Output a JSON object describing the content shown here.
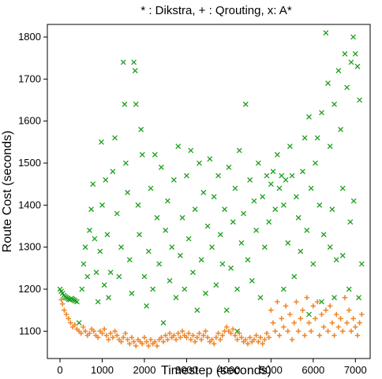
{
  "chart_data": {
    "type": "scatter",
    "title": "* : Dikstra, + : Qrouting, x: A*",
    "xlabel": "Timestep (seconds)",
    "ylabel": "Route Cost (seconds)",
    "xlim": [
      -300,
      7350
    ],
    "ylim": [
      1035,
      1830
    ],
    "xticks": [
      0,
      1000,
      2000,
      3000,
      4000,
      5000,
      6000,
      7000
    ],
    "yticks": [
      1100,
      1200,
      1300,
      1400,
      1500,
      1600,
      1700,
      1800
    ],
    "grid": false,
    "series": [
      {
        "marker": "x",
        "color": "#1a9e1a",
        "points": [
          [
            0,
            1200
          ],
          [
            30,
            1195
          ],
          [
            60,
            1190
          ],
          [
            90,
            1185
          ],
          [
            120,
            1182
          ],
          [
            150,
            1180
          ],
          [
            180,
            1178
          ],
          [
            210,
            1176
          ],
          [
            240,
            1175
          ],
          [
            270,
            1178
          ],
          [
            300,
            1176
          ],
          [
            330,
            1174
          ],
          [
            360,
            1172
          ],
          [
            400,
            1170
          ],
          [
            450,
            1120
          ],
          [
            520,
            1200
          ],
          [
            560,
            1260
          ],
          [
            600,
            1300
          ],
          [
            650,
            1230
          ],
          [
            700,
            1340
          ],
          [
            740,
            1390
          ],
          [
            780,
            1450
          ],
          [
            820,
            1320
          ],
          [
            860,
            1240
          ],
          [
            900,
            1170
          ],
          [
            950,
            1290
          ],
          [
            980,
            1550
          ],
          [
            1000,
            1400
          ],
          [
            1050,
            1210
          ],
          [
            1080,
            1460
          ],
          [
            1120,
            1330
          ],
          [
            1150,
            1180
          ],
          [
            1200,
            1240
          ],
          [
            1250,
            1480
          ],
          [
            1300,
            1560
          ],
          [
            1350,
            1380
          ],
          [
            1400,
            1230
          ],
          [
            1450,
            1300
          ],
          [
            1500,
            1740
          ],
          [
            1530,
            1640
          ],
          [
            1560,
            1500
          ],
          [
            1600,
            1430
          ],
          [
            1650,
            1270
          ],
          [
            1700,
            1190
          ],
          [
            1750,
            1740
          ],
          [
            1780,
            1720
          ],
          [
            1800,
            1640
          ],
          [
            1850,
            1400
          ],
          [
            1880,
            1330
          ],
          [
            1920,
            1580
          ],
          [
            1950,
            1520
          ],
          [
            2000,
            1230
          ],
          [
            2050,
            1160
          ],
          [
            2100,
            1290
          ],
          [
            2150,
            1440
          ],
          [
            2200,
            1200
          ],
          [
            2250,
            1520
          ],
          [
            2300,
            1370
          ],
          [
            2350,
            1260
          ],
          [
            2400,
            1490
          ],
          [
            2450,
            1120
          ],
          [
            2500,
            1340
          ],
          [
            2550,
            1410
          ],
          [
            2600,
            1220
          ],
          [
            2650,
            1300
          ],
          [
            2700,
            1460
          ],
          [
            2750,
            1180
          ],
          [
            2800,
            1540
          ],
          [
            2850,
            1280
          ],
          [
            2900,
            1370
          ],
          [
            2950,
            1200
          ],
          [
            3000,
            1470
          ],
          [
            3050,
            1320
          ],
          [
            3100,
            1530
          ],
          [
            3150,
            1240
          ],
          [
            3200,
            1390
          ],
          [
            3250,
            1150
          ],
          [
            3300,
            1500
          ],
          [
            3350,
            1270
          ],
          [
            3400,
            1430
          ],
          [
            3450,
            1190
          ],
          [
            3500,
            1350
          ],
          [
            3550,
            1510
          ],
          [
            3600,
            1300
          ],
          [
            3650,
            1420
          ],
          [
            3700,
            1210
          ],
          [
            3750,
            1470
          ],
          [
            3800,
            1330
          ],
          [
            3850,
            1260
          ],
          [
            3900,
            1390
          ],
          [
            3950,
            1150
          ],
          [
            4000,
            1490
          ],
          [
            4050,
            1250
          ],
          [
            4100,
            1360
          ],
          [
            4150,
            1440
          ],
          [
            4200,
            1200
          ],
          [
            4250,
            1530
          ],
          [
            4300,
            1310
          ],
          [
            4350,
            1380
          ],
          [
            4400,
            1640
          ],
          [
            4450,
            1270
          ],
          [
            4500,
            1460
          ],
          [
            4550,
            1220
          ],
          [
            4600,
            1410
          ],
          [
            4650,
            1340
          ],
          [
            4700,
            1500
          ],
          [
            4750,
            1180
          ],
          [
            4800,
            1420
          ],
          [
            4850,
            1300
          ],
          [
            4900,
            1470
          ],
          [
            4950,
            1360
          ],
          [
            5000,
            1450
          ],
          [
            5050,
            1480
          ],
          [
            5100,
            1390
          ],
          [
            5150,
            1520
          ],
          [
            5200,
            1440
          ],
          [
            5250,
            1470
          ],
          [
            5300,
            1400
          ],
          [
            5350,
            1460
          ],
          [
            5400,
            1310
          ],
          [
            5450,
            1540
          ],
          [
            5500,
            1470
          ],
          [
            5550,
            1230
          ],
          [
            5600,
            1420
          ],
          [
            5650,
            1370
          ],
          [
            5700,
            1290
          ],
          [
            5750,
            1480
          ],
          [
            5800,
            1560
          ],
          [
            5850,
            1340
          ],
          [
            5900,
            1610
          ],
          [
            5950,
            1440
          ],
          [
            6000,
            1260
          ],
          [
            6050,
            1500
          ],
          [
            6100,
            1560
          ],
          [
            6150,
            1400
          ],
          [
            6200,
            1620
          ],
          [
            6250,
            1330
          ],
          [
            6300,
            1810
          ],
          [
            6350,
            1690
          ],
          [
            6400,
            1540
          ],
          [
            6450,
            1390
          ],
          [
            6500,
            1640
          ],
          [
            6550,
            1270
          ],
          [
            6600,
            1720
          ],
          [
            6650,
            1580
          ],
          [
            6700,
            1440
          ],
          [
            6750,
            1760
          ],
          [
            6800,
            1680
          ],
          [
            6850,
            1200
          ],
          [
            6900,
            1740
          ],
          [
            6950,
            1800
          ],
          [
            7000,
            1760
          ],
          [
            7050,
            1730
          ],
          [
            7100,
            1650
          ],
          [
            7150,
            1260
          ],
          [
            6960,
            1410
          ],
          [
            6880,
            1360
          ],
          [
            7080,
            1180
          ],
          [
            6500,
            1180
          ],
          [
            6200,
            1170
          ],
          [
            5900,
            1140
          ],
          [
            6700,
            1280
          ],
          [
            6400,
            1300
          ],
          [
            5300,
            1200
          ],
          [
            4200,
            1100
          ]
        ]
      },
      {
        "marker": "+",
        "color": "#f0892e",
        "points": [
          [
            30,
            1175
          ],
          [
            60,
            1165
          ],
          [
            100,
            1150
          ],
          [
            150,
            1140
          ],
          [
            200,
            1130
          ],
          [
            250,
            1120
          ],
          [
            300,
            1110
          ],
          [
            350,
            1115
          ],
          [
            400,
            1105
          ],
          [
            450,
            1100
          ],
          [
            500,
            1095
          ],
          [
            550,
            1110
          ],
          [
            600,
            1100
          ],
          [
            650,
            1090
          ],
          [
            700,
            1095
          ],
          [
            750,
            1105
          ],
          [
            800,
            1100
          ],
          [
            850,
            1090
          ],
          [
            900,
            1085
          ],
          [
            950,
            1100
          ],
          [
            1000,
            1095
          ],
          [
            1050,
            1105
          ],
          [
            1100,
            1090
          ],
          [
            1150,
            1080
          ],
          [
            1200,
            1095
          ],
          [
            1250,
            1085
          ],
          [
            1300,
            1100
          ],
          [
            1350,
            1090
          ],
          [
            1400,
            1080
          ],
          [
            1450,
            1075
          ],
          [
            1500,
            1085
          ],
          [
            1550,
            1095
          ],
          [
            1600,
            1080
          ],
          [
            1650,
            1070
          ],
          [
            1700,
            1085
          ],
          [
            1750,
            1075
          ],
          [
            1800,
            1065
          ],
          [
            1850,
            1080
          ],
          [
            1900,
            1075
          ],
          [
            1950,
            1070
          ],
          [
            2000,
            1085
          ],
          [
            2050,
            1075
          ],
          [
            2100,
            1065
          ],
          [
            2150,
            1080
          ],
          [
            2200,
            1070
          ],
          [
            2250,
            1075
          ],
          [
            2300,
            1065
          ],
          [
            2350,
            1080
          ],
          [
            2400,
            1085
          ],
          [
            2450,
            1075
          ],
          [
            2500,
            1090
          ],
          [
            2550,
            1080
          ],
          [
            2600,
            1095
          ],
          [
            2650,
            1085
          ],
          [
            2700,
            1090
          ],
          [
            2750,
            1080
          ],
          [
            2800,
            1095
          ],
          [
            2850,
            1085
          ],
          [
            2900,
            1100
          ],
          [
            2950,
            1090
          ],
          [
            3000,
            1085
          ],
          [
            3050,
            1095
          ],
          [
            3100,
            1080
          ],
          [
            3150,
            1090
          ],
          [
            3200,
            1075
          ],
          [
            3250,
            1085
          ],
          [
            3300,
            1095
          ],
          [
            3350,
            1080
          ],
          [
            3400,
            1090
          ],
          [
            3450,
            1100
          ],
          [
            3500,
            1085
          ],
          [
            3550,
            1075
          ],
          [
            3600,
            1080
          ],
          [
            3650,
            1070
          ],
          [
            3700,
            1085
          ],
          [
            3750,
            1095
          ],
          [
            3800,
            1080
          ],
          [
            3850,
            1090
          ],
          [
            3900,
            1100
          ],
          [
            3950,
            1110
          ],
          [
            4000,
            1100
          ],
          [
            4050,
            1095
          ],
          [
            4100,
            1105
          ],
          [
            4150,
            1090
          ],
          [
            4200,
            1080
          ],
          [
            4250,
            1095
          ],
          [
            4300,
            1085
          ],
          [
            4350,
            1075
          ],
          [
            4400,
            1080
          ],
          [
            4450,
            1070
          ],
          [
            4500,
            1085
          ],
          [
            4550,
            1075
          ],
          [
            4600,
            1080
          ],
          [
            4650,
            1090
          ],
          [
            4700,
            1075
          ],
          [
            4750,
            1085
          ],
          [
            4800,
            1070
          ],
          [
            4850,
            1080
          ],
          [
            4900,
            1095
          ],
          [
            4950,
            1085
          ],
          [
            5000,
            1150
          ],
          [
            5050,
            1120
          ],
          [
            5100,
            1100
          ],
          [
            5150,
            1170
          ],
          [
            5200,
            1090
          ],
          [
            5250,
            1130
          ],
          [
            5300,
            1110
          ],
          [
            5350,
            1160
          ],
          [
            5400,
            1100
          ],
          [
            5450,
            1140
          ],
          [
            5500,
            1080
          ],
          [
            5550,
            1120
          ],
          [
            5600,
            1170
          ],
          [
            5650,
            1100
          ],
          [
            5700,
            1130
          ],
          [
            5750,
            1150
          ],
          [
            5800,
            1090
          ],
          [
            5850,
            1180
          ],
          [
            5900,
            1120
          ],
          [
            5950,
            1100
          ],
          [
            6000,
            1160
          ],
          [
            6050,
            1130
          ],
          [
            6100,
            1170
          ],
          [
            6150,
            1090
          ],
          [
            6200,
            1140
          ],
          [
            6250,
            1110
          ],
          [
            6300,
            1150
          ],
          [
            6350,
            1100
          ],
          [
            6400,
            1160
          ],
          [
            6450,
            1120
          ],
          [
            6500,
            1090
          ],
          [
            6550,
            1140
          ],
          [
            6600,
            1110
          ],
          [
            6650,
            1130
          ],
          [
            6700,
            1100
          ],
          [
            6750,
            1180
          ],
          [
            6800,
            1120
          ],
          [
            6850,
            1150
          ],
          [
            6900,
            1100
          ],
          [
            6950,
            1130
          ],
          [
            7000,
            1110
          ],
          [
            7050,
            1090
          ],
          [
            7100,
            1120
          ],
          [
            7150,
            1140
          ]
        ]
      }
    ]
  }
}
